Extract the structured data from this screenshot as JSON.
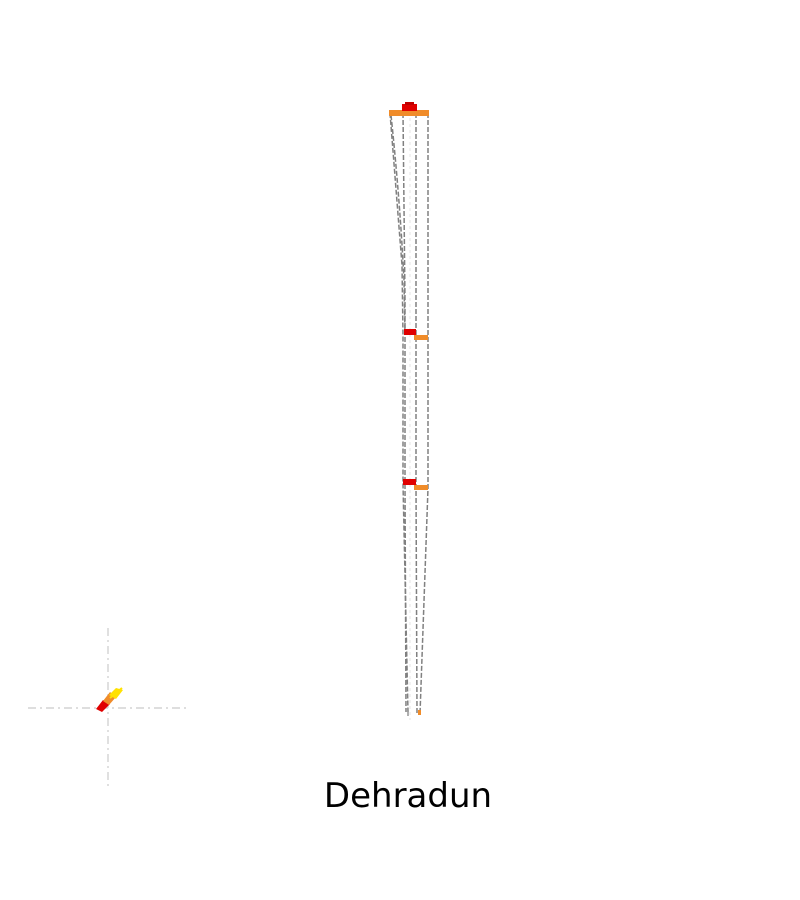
{
  "location": {
    "name": "Dehradun"
  },
  "colors": {
    "background": "#ffffff",
    "guide_line": "#808080",
    "crosshair": "#d3d3d3",
    "marker_red": "#e00000",
    "marker_orange": "#f08c2a",
    "marker_yellow": "#ffe100"
  }
}
